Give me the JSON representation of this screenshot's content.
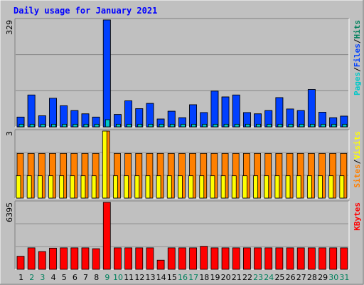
{
  "title": "Daily usage for January 2021",
  "colors": {
    "background": "#C0C0C0",
    "title": "#0000FF",
    "hits": "#00805C",
    "files": "#0040FF",
    "pages": "#00C8C8",
    "visits": "#FFFF00",
    "sites": "#FF8000",
    "kbytes": "#FF0000",
    "weekend_label": "#00805C",
    "weekday_label": "#000000"
  },
  "chart_data": {
    "type": "bar",
    "categories": [
      "1",
      "2",
      "3",
      "4",
      "5",
      "6",
      "7",
      "8",
      "9",
      "10",
      "11",
      "12",
      "13",
      "14",
      "15",
      "16",
      "17",
      "18",
      "19",
      "20",
      "21",
      "22",
      "23",
      "24",
      "25",
      "26",
      "27",
      "28",
      "29",
      "30",
      "31"
    ],
    "weekend_days": [
      "2",
      "3",
      "9",
      "10",
      "16",
      "17",
      "23",
      "24",
      "30",
      "31"
    ],
    "panels": [
      {
        "name": "hits-files-pages",
        "label_parts": [
          "Pages",
          "/",
          "Files",
          "/",
          "Hits"
        ],
        "ymax_label": "329",
        "ymax": 329,
        "series": [
          {
            "name": "Hits",
            "values": [
              30,
              98,
              34,
              88,
              65,
              50,
              40,
              30,
              329,
              38,
              80,
              56,
              72,
              24,
              48,
              28,
              68,
              44,
              110,
              92,
              98,
              44,
              40,
              50,
              90,
              55,
              50,
              115,
              45,
              28,
              33
            ]
          },
          {
            "name": "Files",
            "values": [
              30,
              98,
              34,
              88,
              65,
              50,
              40,
              30,
              329,
              38,
              80,
              56,
              72,
              24,
              48,
              28,
              68,
              44,
              110,
              92,
              98,
              44,
              40,
              50,
              90,
              55,
              50,
              115,
              45,
              28,
              33
            ]
          },
          {
            "name": "Pages",
            "values": [
              8,
              8,
              8,
              8,
              8,
              8,
              8,
              8,
              22,
              8,
              8,
              8,
              8,
              8,
              8,
              8,
              8,
              8,
              8,
              8,
              8,
              8,
              8,
              8,
              8,
              8,
              8,
              8,
              8,
              8,
              8
            ]
          }
        ]
      },
      {
        "name": "visits-sites",
        "label_parts": [
          "Sites",
          "/",
          "Visits"
        ],
        "ymax_label": "3",
        "ymax": 3,
        "series": [
          {
            "name": "Sites",
            "values": [
              2,
              2,
              2,
              2,
              2,
              2,
              2,
              2,
              3,
              2,
              2,
              2,
              2,
              2,
              2,
              2,
              2,
              2,
              2,
              2,
              2,
              2,
              2,
              2,
              2,
              2,
              2,
              2,
              2,
              2,
              2
            ]
          },
          {
            "name": "Visits",
            "values": [
              1,
              1,
              1,
              1,
              1,
              1,
              1,
              1,
              3,
              1,
              1,
              1,
              1,
              1,
              1,
              1,
              1,
              1,
              1,
              1,
              1,
              1,
              1,
              1,
              1,
              1,
              1,
              1,
              1,
              1,
              1
            ]
          }
        ]
      },
      {
        "name": "kbytes",
        "label_parts": [
          "KBytes"
        ],
        "ymax_label": "6395",
        "ymax": 6395,
        "series": [
          {
            "name": "KBytes",
            "values": [
              1250,
              2050,
              1700,
              2020,
              2050,
              2050,
              2050,
              1970,
              6395,
              2050,
              2050,
              2050,
              2050,
              870,
              2050,
              2050,
              2050,
              2200,
              2050,
              2050,
              2050,
              2050,
              2050,
              2050,
              2050,
              2050,
              2050,
              2050,
              2050,
              2050,
              2050
            ]
          }
        ]
      }
    ]
  }
}
